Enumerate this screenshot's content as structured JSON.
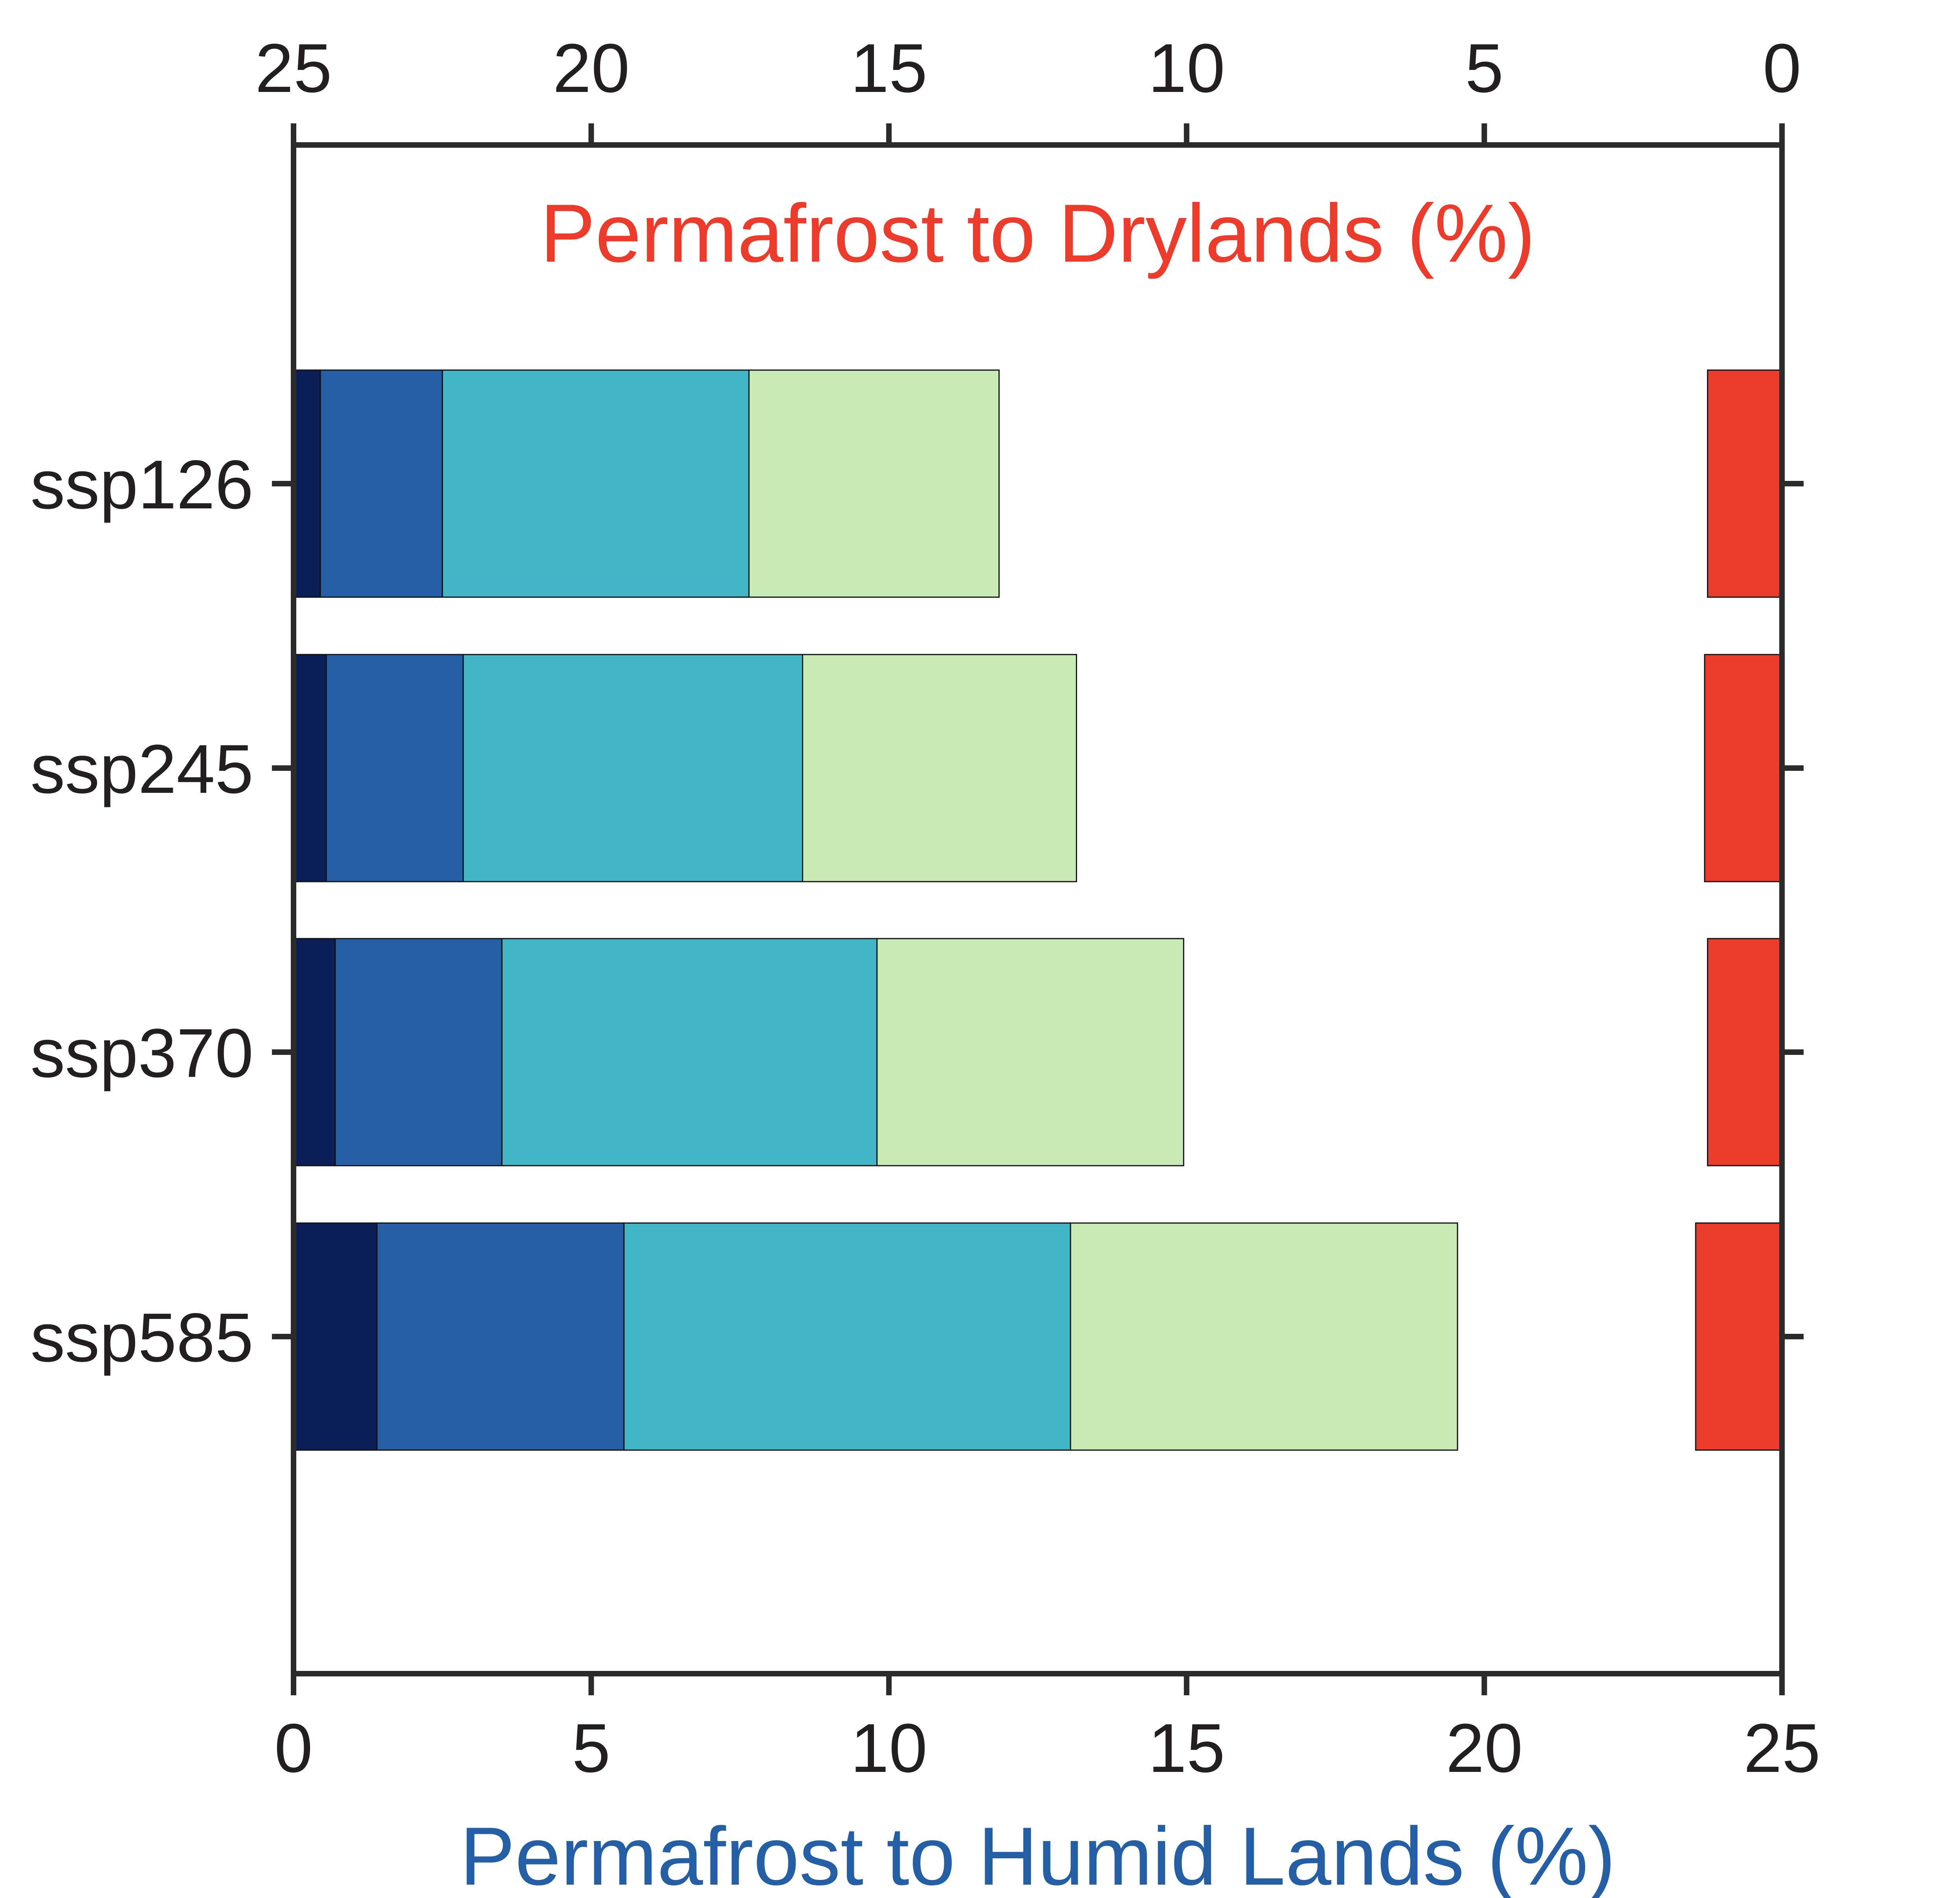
{
  "chart_data": {
    "type": "bar",
    "categories": [
      "ssp126",
      "ssp245",
      "ssp370",
      "ssp585"
    ],
    "bottom_axis": {
      "label": "Permafrost to Humid Lands (%)",
      "ticks": [
        "0",
        "5",
        "10",
        "15",
        "20",
        "25"
      ],
      "range": [
        0,
        25
      ],
      "color": "#245ea5"
    },
    "top_axis": {
      "label": "Permafrost to Drylands (%)",
      "ticks": [
        "25",
        "20",
        "15",
        "10",
        "5",
        "0"
      ],
      "range": [
        25,
        0
      ],
      "reversed": true,
      "color": "#ec3b2b"
    },
    "humid_segments": {
      "colors": [
        "#0b1f57",
        "#245ea5",
        "#42b6c4",
        "#c8eab5"
      ],
      "values": [
        [
          0.45,
          2.05,
          5.15,
          4.2
        ],
        [
          0.55,
          2.3,
          5.7,
          4.6
        ],
        [
          0.7,
          2.8,
          6.3,
          5.15
        ],
        [
          1.4,
          4.15,
          7.5,
          6.5
        ]
      ]
    },
    "drylands": {
      "color": "#ec3b2b",
      "values": [
        1.25,
        1.3,
        1.25,
        1.45
      ]
    },
    "grid": false
  }
}
